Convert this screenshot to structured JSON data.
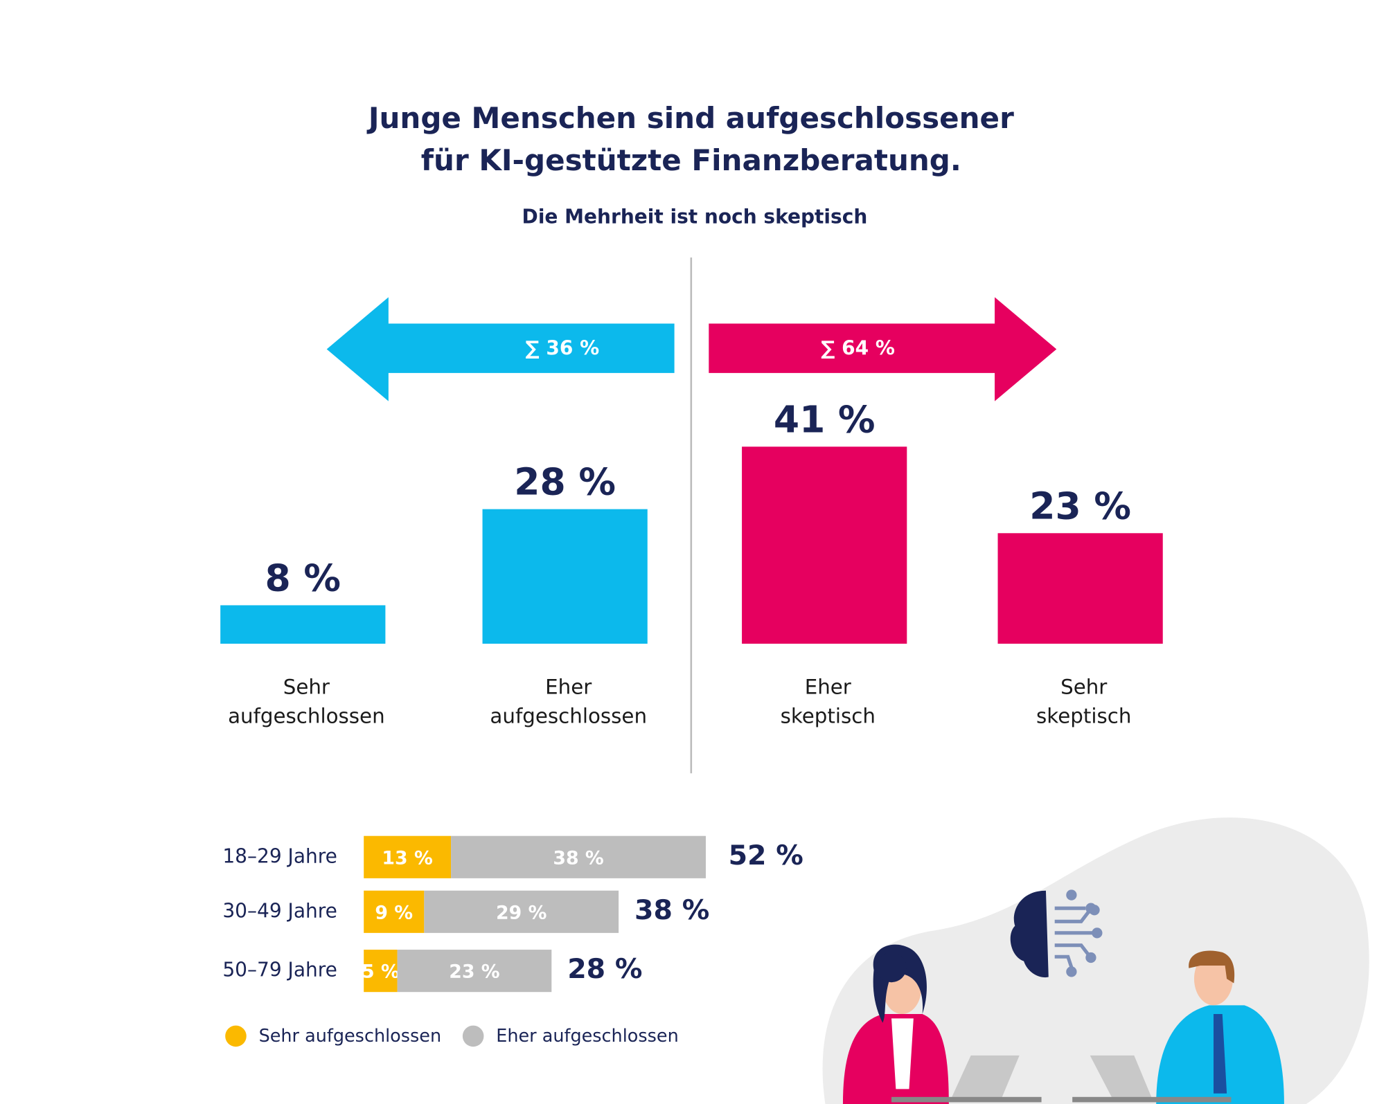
{
  "title": [
    "Junge Menschen sind aufgeschlossener",
    "für KI-gestützte Finanzberatung."
  ],
  "subtitle": "Die Mehrheit ist noch skeptisch",
  "chart_data": [
    {
      "type": "bar",
      "categories": [
        "Sehr aufgeschlossen",
        "Eher aufgeschlossen",
        "Eher skeptisch",
        "Sehr skeptisch"
      ],
      "values": [
        8,
        28,
        41,
        23
      ],
      "value_labels": [
        "8 %",
        "28 %",
        "41 %",
        "23 %"
      ],
      "colors": [
        "#0cb9ec",
        "#0cb9ec",
        "#e6005f",
        "#e6005f"
      ],
      "sums": {
        "values": [
          36,
          64
        ],
        "value_labels": [
          "∑ 36 %",
          "∑ 64 %"
        ],
        "colors": [
          "#0cb9ec",
          "#e6005f"
        ]
      }
    },
    {
      "type": "stacked-hbar",
      "categories": [
        "18–29 Jahre",
        "30–49 Jahre",
        "50–79 Jahre"
      ],
      "series": [
        {
          "name": "Sehr aufgeschlossen",
          "color": "#fbb900",
          "values": [
            13,
            9,
            5
          ],
          "value_labels": [
            "13 %",
            "9 %",
            "5 %"
          ]
        },
        {
          "name": "Eher aufgeschlossen",
          "color": "#bdbdbd",
          "values": [
            38,
            29,
            23
          ],
          "value_labels": [
            "38 %",
            "29 %",
            "23 %"
          ]
        }
      ],
      "totals": {
        "values": [
          52,
          38,
          28
        ],
        "value_labels": [
          "52 %",
          "38 %",
          "28 %"
        ]
      }
    }
  ]
}
